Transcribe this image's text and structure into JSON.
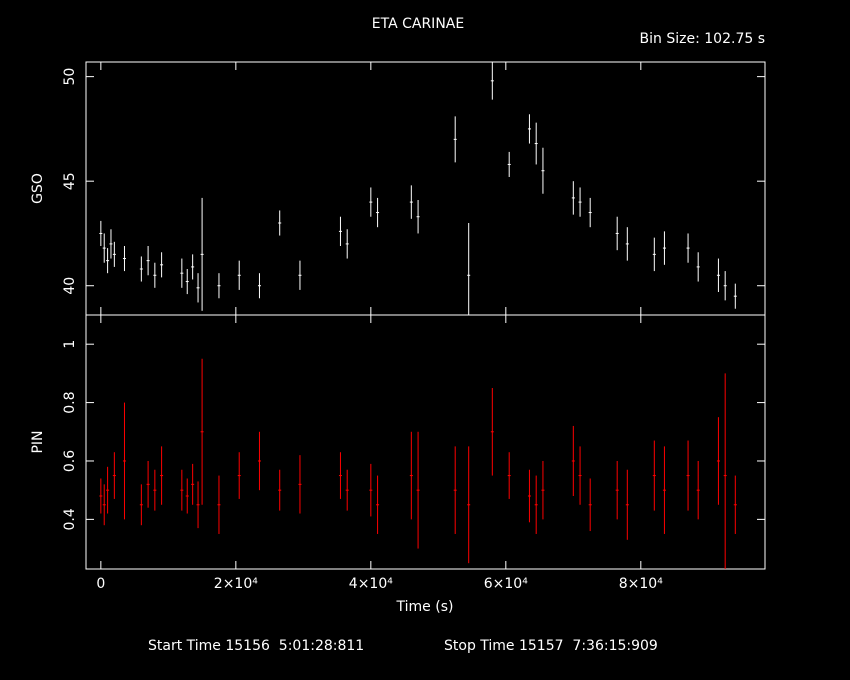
{
  "chart_data": [
    {
      "type": "errorbar",
      "title": "ETA CARINAE",
      "subtitle": "Bin Size: 102.75 s",
      "ylabel": "GSO",
      "xlim": [
        -2200,
        98400
      ],
      "xticks": [
        0,
        20000,
        40000,
        60000,
        80000
      ],
      "ylim": [
        38.6,
        50.7
      ],
      "yticks": [
        40,
        45,
        50
      ],
      "x": [
        0,
        500,
        1000,
        1500,
        2000,
        3500,
        6000,
        7000,
        8000,
        9000,
        12000,
        12800,
        13600,
        14400,
        15000,
        17500,
        20500,
        23500,
        26500,
        29500,
        35500,
        36500,
        40000,
        41000,
        46000,
        47000,
        52500,
        54500,
        58000,
        60500,
        63500,
        64500,
        65500,
        70000,
        71000,
        72500,
        76500,
        78000,
        82000,
        83500,
        87000,
        88500,
        91500,
        92500,
        94000
      ],
      "series": [
        {
          "color": "#ffffff",
          "values": [
            42.5,
            41.8,
            41.2,
            42.0,
            41.5,
            41.3,
            40.8,
            41.2,
            40.5,
            41.0,
            40.6,
            40.2,
            40.9,
            39.9,
            41.5,
            40.0,
            40.5,
            40.0,
            43.0,
            40.5,
            42.6,
            42.0,
            44.0,
            43.5,
            44.0,
            43.3,
            47.0,
            40.5,
            49.8,
            45.8,
            47.5,
            46.8,
            45.5,
            44.2,
            44.0,
            43.5,
            42.5,
            42.0,
            41.5,
            41.8,
            41.8,
            40.9,
            40.5,
            40.0,
            39.5
          ],
          "errors": [
            0.6,
            0.7,
            0.6,
            0.7,
            0.6,
            0.6,
            0.6,
            0.7,
            0.6,
            0.6,
            0.7,
            0.6,
            0.6,
            0.7,
            2.7,
            0.6,
            0.7,
            0.6,
            0.6,
            0.7,
            0.7,
            0.7,
            0.7,
            0.7,
            0.8,
            0.8,
            1.1,
            2.5,
            0.9,
            0.6,
            0.7,
            1.0,
            1.1,
            0.8,
            0.7,
            0.7,
            0.8,
            0.8,
            0.8,
            0.8,
            0.7,
            0.7,
            0.8,
            0.7,
            0.6
          ]
        }
      ]
    },
    {
      "type": "errorbar",
      "ylabel": "PIN",
      "xlabel": "Time (s)",
      "xlim": [
        -2200,
        98400
      ],
      "xticks": [
        0,
        {
          "value": 20000,
          "label": "2×10⁴"
        },
        {
          "value": 40000,
          "label": "4×10⁴"
        },
        {
          "value": 60000,
          "label": "6×10⁴"
        },
        {
          "value": 80000,
          "label": "8×10⁴"
        }
      ],
      "ylim": [
        0.23,
        1.1
      ],
      "yticks": [
        0.4,
        0.6,
        0.8,
        1
      ],
      "x": [
        0,
        500,
        1000,
        2000,
        3500,
        6000,
        7000,
        8000,
        9000,
        12000,
        12800,
        13600,
        14400,
        15000,
        17500,
        20500,
        23500,
        26500,
        29500,
        35500,
        36500,
        40000,
        41000,
        46000,
        47000,
        52500,
        54500,
        58000,
        60500,
        63500,
        64500,
        65500,
        70000,
        71000,
        72500,
        76500,
        78000,
        82000,
        83500,
        87000,
        88500,
        91500,
        92500,
        94000
      ],
      "series": [
        {
          "color": "#ff0000",
          "values": [
            0.48,
            0.45,
            0.5,
            0.55,
            0.6,
            0.45,
            0.52,
            0.5,
            0.55,
            0.5,
            0.48,
            0.52,
            0.45,
            0.7,
            0.45,
            0.55,
            0.6,
            0.5,
            0.52,
            0.55,
            0.5,
            0.5,
            0.45,
            0.55,
            0.5,
            0.5,
            0.45,
            0.7,
            0.55,
            0.48,
            0.45,
            0.5,
            0.6,
            0.55,
            0.45,
            0.5,
            0.45,
            0.55,
            0.5,
            0.55,
            0.5,
            0.6,
            0.55,
            0.45
          ],
          "errors": [
            0.06,
            0.07,
            0.08,
            0.08,
            0.2,
            0.07,
            0.08,
            0.07,
            0.1,
            0.07,
            0.06,
            0.07,
            0.08,
            0.25,
            0.1,
            0.08,
            0.1,
            0.07,
            0.1,
            0.08,
            0.07,
            0.09,
            0.1,
            0.15,
            0.2,
            0.15,
            0.2,
            0.15,
            0.08,
            0.09,
            0.1,
            0.1,
            0.12,
            0.1,
            0.09,
            0.1,
            0.12,
            0.12,
            0.15,
            0.12,
            0.1,
            0.15,
            0.35,
            0.1
          ]
        }
      ]
    }
  ],
  "footer": {
    "start": "Start Time 15156  5:01:28:811",
    "stop": "Stop Time 15157  7:36:15:909"
  }
}
